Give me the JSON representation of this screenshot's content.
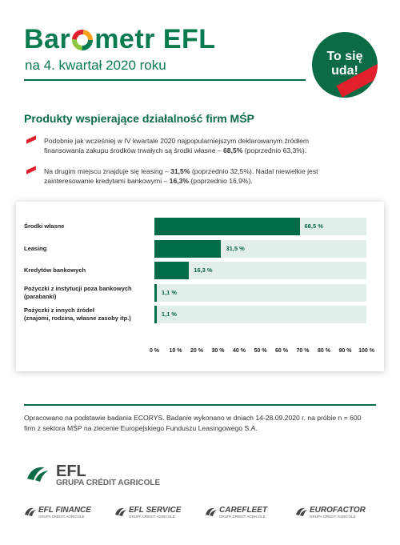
{
  "header": {
    "brand_left": "Bar",
    "brand_right": "metr EFL",
    "subtitle": "na 4. kwartał 2020 roku",
    "badge": [
      "To się",
      "uda!"
    ]
  },
  "section": {
    "title": "Produkty wspierające działalność firm MŚP",
    "bullets": [
      [
        "Podobnie jak wcześniej w IV kwartale 2020 najpopularniejszym deklarowanym źródłem finansowania zakupu środków trwałych są środki własne – ",
        "68,5%",
        " (poprzednio 63,3%)."
      ],
      [
        "Na drugim miejscu znajduje się leasing – ",
        "31,5%",
        " (poprzednio 32,5%). Nadal niewielkie jest zainteresowanie kredytami bankowymi – ",
        "16,3%",
        " (poprzednio 16,9%)."
      ]
    ]
  },
  "chart_data": {
    "type": "bar",
    "orientation": "horizontal",
    "categories": [
      "Środki własne",
      "Leasing",
      "Kredytów bankowych",
      "Pożyczki z instytucji poza bankowych\n(parabanki)",
      "Pożyczki z innych źródeł\n(znajomi, rodzina, własne zasoby itp.)"
    ],
    "values": [
      68.5,
      31.5,
      16.3,
      1.1,
      1.1
    ],
    "value_labels": [
      "68,5 %",
      "31,5 %",
      "16,3 %",
      "1,1 %",
      "1,1 %"
    ],
    "color": "#006b47",
    "track_color": "#e2efe9",
    "xlim": [
      0,
      100
    ],
    "xticks": [
      {
        "value": 0,
        "label": "0 %"
      },
      {
        "value": 10,
        "label": "10 %"
      },
      {
        "value": 20,
        "label": "20 %"
      },
      {
        "value": 30,
        "label": "30 %"
      },
      {
        "value": 40,
        "label": "40 %"
      },
      {
        "value": 50,
        "label": "50 %"
      },
      {
        "value": 60,
        "label": "60 %"
      },
      {
        "value": 70,
        "label": "70 %"
      },
      {
        "value": 80,
        "label": "80 %"
      },
      {
        "value": 90,
        "label": "90 %"
      },
      {
        "value": 100,
        "label": "100 %"
      }
    ]
  },
  "footer": {
    "note": "Opracowano na podstawie badania ECORYS. Badanie wykonano w dniach 14-28.09.2020 r. na próbie n = 600 firm z sektora MŚP na zlecenie Europejskiego Funduszu Leasingowego S.A.",
    "main_logo": {
      "name": "EFL",
      "group": "GRUPA CRÉDIT AGRICOLE"
    },
    "logos": [
      {
        "name": "EFL FINANCE",
        "group": "GRUPA CRÉDIT AGRICOLE"
      },
      {
        "name": "EFL SERVICE",
        "group": "GRUPA CRÉDIT AGRICOLE"
      },
      {
        "name": "CAREFLEET",
        "group": "GRUPA CRÉDIT AGRICOLE"
      },
      {
        "name": "EUROFACTOR",
        "group": "GRUPA CRÉDIT AGRICOLE"
      }
    ]
  }
}
